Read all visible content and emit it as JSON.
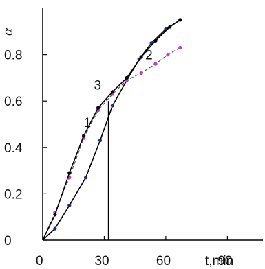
{
  "chart_data": {
    "type": "line",
    "title": "",
    "xlabel": "t,min",
    "ylabel": "α",
    "xlim": [
      0,
      110
    ],
    "ylim": [
      0,
      1.0
    ],
    "x_ticks": [
      0,
      30,
      60,
      90
    ],
    "x_tick_labels": [
      "0",
      "30",
      "60",
      "90"
    ],
    "y_ticks": [
      0,
      0.2,
      0.4,
      0.6,
      0.8
    ],
    "y_tick_labels": [
      "0",
      "0.2",
      "0.4",
      "0.6",
      "0.8"
    ],
    "grid": false,
    "legend": "none",
    "vertical_reference_line_x": 32,
    "series": [
      {
        "curve_label": "1",
        "color": "#1a2a8a",
        "x": [
          0,
          6,
          13,
          21,
          28,
          34,
          41,
          47,
          53,
          60,
          67
        ],
        "y": [
          0.0,
          0.05,
          0.15,
          0.27,
          0.43,
          0.58,
          0.69,
          0.78,
          0.85,
          0.91,
          0.95
        ]
      },
      {
        "curve_label": "2",
        "color": "#cc33cc",
        "x": [
          0,
          6,
          13,
          20,
          27,
          34,
          41,
          48,
          55,
          61,
          67
        ],
        "y": [
          0.0,
          0.12,
          0.27,
          0.44,
          0.56,
          0.63,
          0.69,
          0.72,
          0.76,
          0.8,
          0.83
        ]
      },
      {
        "curve_label": "3",
        "color": "#000000",
        "x": [
          0,
          6,
          13,
          20,
          27,
          34,
          41,
          48,
          55,
          62,
          67
        ],
        "y": [
          0.0,
          0.11,
          0.29,
          0.45,
          0.57,
          0.64,
          0.7,
          0.79,
          0.86,
          0.92,
          0.95
        ]
      }
    ]
  }
}
